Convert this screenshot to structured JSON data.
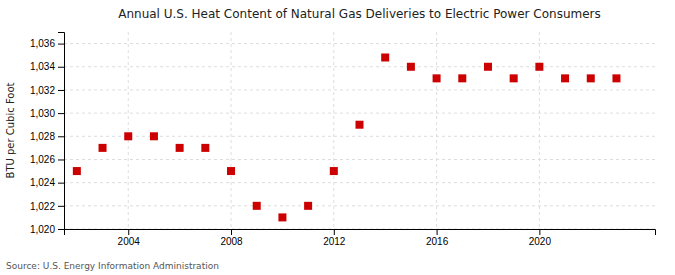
{
  "chart_data": {
    "type": "scatter",
    "title": "Annual U.S. Heat Content of Natural Gas Deliveries to Electric Power Consumers",
    "y_label": "BTU per Cubic Foot",
    "annotation": "Source: U.S. Energy Information Administration",
    "x": [
      2002,
      2003,
      2004,
      2005,
      2006,
      2007,
      2008,
      2009,
      2010,
      2011,
      2012,
      2013,
      2014,
      2015,
      2016,
      2017,
      2018,
      2019,
      2020,
      2021,
      2022,
      2023
    ],
    "values": [
      1025,
      1027,
      1028,
      1028,
      1027,
      1027,
      1025,
      1022,
      1021,
      1022,
      1025,
      1029,
      1034.8,
      1034,
      1033,
      1033,
      1034,
      1033,
      1034,
      1033,
      1033,
      1033
    ],
    "color": "#cc0000",
    "marker": "square",
    "xlim": [
      2001.5,
      2024.5
    ],
    "ylim": [
      1020,
      1037
    ],
    "xticks": [
      2004,
      2008,
      2012,
      2016,
      2020
    ],
    "yticks": [
      {
        "value": 1020,
        "label": "1,020"
      },
      {
        "value": 1022,
        "label": "1,022"
      },
      {
        "value": 1024,
        "label": "1,024"
      },
      {
        "value": 1026,
        "label": "1,026"
      },
      {
        "value": 1028,
        "label": "1,028"
      },
      {
        "value": 1030,
        "label": "1,030"
      },
      {
        "value": 1032,
        "label": "1,032"
      },
      {
        "value": 1034,
        "label": "1,034"
      },
      {
        "value": 1036,
        "label": "1,036"
      }
    ],
    "grid": true
  }
}
